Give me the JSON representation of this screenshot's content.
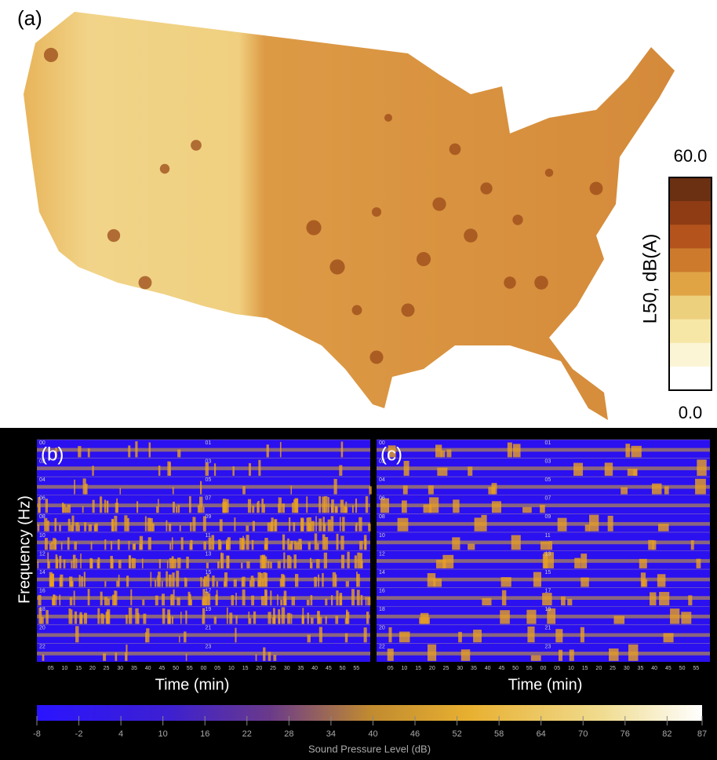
{
  "panel_a": {
    "label": "(a)",
    "legend": {
      "title": "L50, dB(A)",
      "max": "60.0",
      "min": "0.0",
      "colors": [
        "#6b2f12",
        "#8f3c14",
        "#b4541c",
        "#cd7a2c",
        "#e0a445",
        "#ecd07e",
        "#f6e7a7",
        "#fbf5d6",
        "#ffffff"
      ]
    }
  },
  "panel_b": {
    "label": "(b)",
    "x_label": "Time (min)"
  },
  "panel_c": {
    "label": "(c)",
    "x_label": "Time (min)"
  },
  "y_label": "Frequency (Hz)",
  "time_ticks": [
    "05",
    "10",
    "15",
    "20",
    "25",
    "30",
    "35",
    "40",
    "45",
    "50",
    "55",
    "00",
    "05",
    "10",
    "15",
    "20",
    "25",
    "30",
    "35",
    "40",
    "45",
    "50",
    "55"
  ],
  "hours_left": [
    "00",
    "02",
    "04",
    "06",
    "08",
    "10",
    "12",
    "14",
    "16",
    "18",
    "20",
    "22"
  ],
  "hours_right": [
    "01",
    "03",
    "05",
    "07",
    "09",
    "11",
    "13",
    "15",
    "17",
    "19",
    "21",
    "23"
  ],
  "colorbar": {
    "label": "Sound Pressure Level (dB)",
    "lim": [
      -8,
      87
    ],
    "ticks": [
      -8,
      -2,
      4,
      10,
      16,
      22,
      28,
      34,
      40,
      46,
      52,
      58,
      64,
      70,
      76,
      82,
      87
    ]
  }
}
